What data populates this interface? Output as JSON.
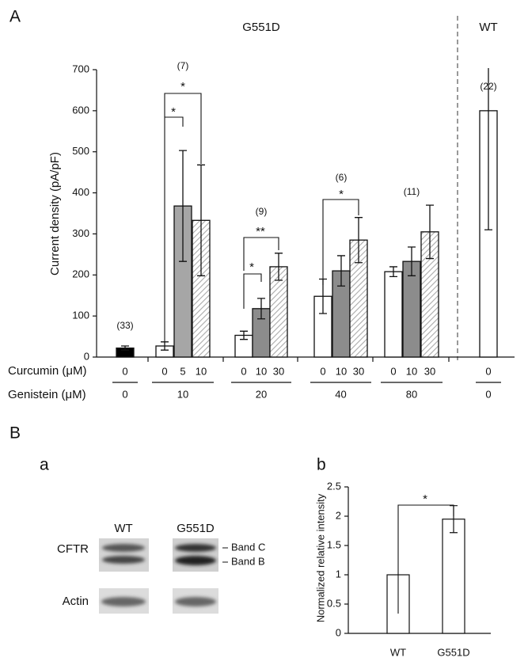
{
  "panels": [
    "A",
    "B"
  ],
  "chart_data": [
    {
      "type": "bar",
      "ylabel": "Current density (pA/pF)",
      "ylim": [
        0,
        700
      ],
      "yticks": [
        0,
        100,
        200,
        300,
        400,
        500,
        600,
        700
      ],
      "group_headers": [
        "G551D",
        "WT"
      ],
      "row_labels": [
        "Curcumin (μM)",
        "Genistein (μM)"
      ],
      "groups": [
        {
          "genistein": "0",
          "n": "(33)",
          "bars": [
            {
              "curcumin": "0",
              "value": 22,
              "error": 5,
              "color": "#000000"
            }
          ]
        },
        {
          "genistein": "10",
          "n": "(7)",
          "bars": [
            {
              "curcumin": "0",
              "value": 27,
              "error": 10,
              "color": "#ffffff"
            },
            {
              "curcumin": "5",
              "value": 368,
              "error": 135,
              "color": "#a6a6a6"
            },
            {
              "curcumin": "10",
              "value": 333,
              "error": 135,
              "color": "hatch"
            }
          ]
        },
        {
          "genistein": "20",
          "n": "(9)",
          "bars": [
            {
              "curcumin": "0",
              "value": 53,
              "error": 10,
              "color": "#ffffff"
            },
            {
              "curcumin": "10",
              "value": 118,
              "error": 25,
              "color": "#8c8c8c"
            },
            {
              "curcumin": "30",
              "value": 220,
              "error": 33,
              "color": "hatch"
            }
          ]
        },
        {
          "genistein": "40",
          "n": "(6)",
          "bars": [
            {
              "curcumin": "0",
              "value": 148,
              "error": 42,
              "color": "#ffffff"
            },
            {
              "curcumin": "10",
              "value": 210,
              "error": 37,
              "color": "#8c8c8c"
            },
            {
              "curcumin": "30",
              "value": 285,
              "error": 55,
              "color": "hatch"
            }
          ]
        },
        {
          "genistein": "80",
          "n": "(11)",
          "bars": [
            {
              "curcumin": "0",
              "value": 208,
              "error": 12,
              "color": "#ffffff"
            },
            {
              "curcumin": "10",
              "value": 233,
              "error": 35,
              "color": "#8c8c8c"
            },
            {
              "curcumin": "30",
              "value": 305,
              "error": 65,
              "color": "hatch"
            }
          ]
        },
        {
          "genistein": "0",
          "n": "(22)",
          "bars": [
            {
              "curcumin": "0",
              "value": 600,
              "error": 290,
              "color": "#ffffff"
            }
          ]
        }
      ],
      "annotations": [
        "*",
        "*",
        "*",
        "**",
        "*"
      ]
    },
    {
      "type": "bar",
      "panel": "b",
      "ylabel": "Normalized relative intensity",
      "ylim": [
        0,
        2.5
      ],
      "yticks": [
        0,
        0.5,
        1,
        1.5,
        2,
        2.5
      ],
      "categories": [
        "WT",
        "G551D"
      ],
      "values": [
        1,
        1.95
      ],
      "errors": [
        null,
        0.23
      ],
      "color": "#ffffff",
      "annotations": [
        "*"
      ]
    }
  ],
  "blot": {
    "panel": "a",
    "columns": [
      "WT",
      "G551D"
    ],
    "rows": [
      "CFTR",
      "Actin"
    ],
    "bands": [
      "Band C",
      "Band B"
    ]
  }
}
